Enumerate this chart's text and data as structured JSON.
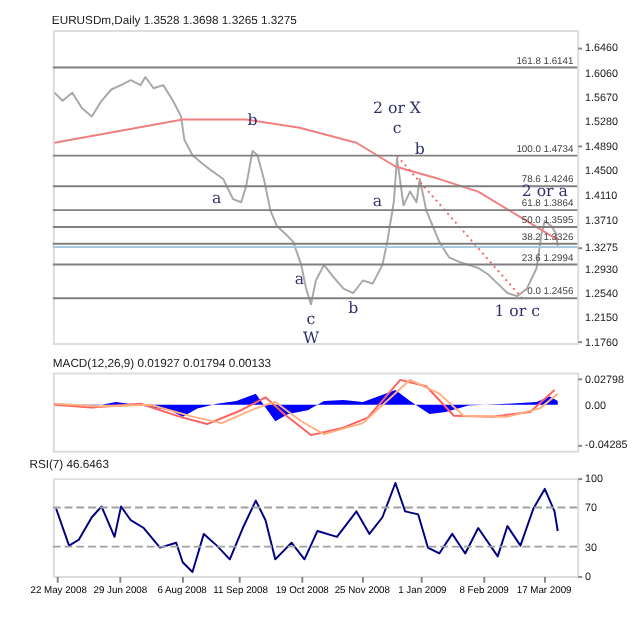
{
  "chart_data": [
    {
      "type": "line",
      "title": "EURUSDm,Daily  1.3528 1.3698 1.3265 1.3275",
      "xlim": [
        "2008-05-19",
        "2009-04-07"
      ],
      "ylim": [
        1.174,
        1.674
      ],
      "tick_labels": "y",
      "yticks": [
        {
          "value": 1.646,
          "label": "1.6460"
        },
        {
          "value": 1.606,
          "label": "1.6060"
        },
        {
          "value": 1.567,
          "label": "1.5670"
        },
        {
          "value": 1.528,
          "label": "1.5280"
        },
        {
          "value": 1.489,
          "label": "1.4890"
        },
        {
          "value": 1.45,
          "label": "1.4500"
        },
        {
          "value": 1.411,
          "label": "1.4110"
        },
        {
          "value": 1.371,
          "label": "1.3710"
        },
        {
          "value": 1.3275,
          "label": "1.3275"
        },
        {
          "value": 1.293,
          "label": "1.2930"
        },
        {
          "value": 1.254,
          "label": "1.2540"
        },
        {
          "value": 1.215,
          "label": "1.2150"
        },
        {
          "value": 1.176,
          "label": "1.1760"
        }
      ],
      "series": [
        {
          "color": "#a8a8a8",
          "x": [
            "2008-05-20",
            "2008-05-25",
            "2008-05-31",
            "2008-06-06",
            "2008-06-12",
            "2008-06-18",
            "2008-06-24",
            "2008-06-30",
            "2008-07-06",
            "2008-07-12",
            "2008-07-15",
            "2008-07-20",
            "2008-07-26",
            "2008-08-01",
            "2008-08-06",
            "2008-08-08",
            "2008-08-13",
            "2008-08-19",
            "2008-08-25",
            "2008-09-01",
            "2008-09-07",
            "2008-09-12",
            "2008-09-15",
            "2008-09-19",
            "2008-09-22",
            "2008-09-26",
            "2008-09-30",
            "2008-10-04",
            "2008-10-09",
            "2008-10-14",
            "2008-10-19",
            "2008-10-22",
            "2008-10-25",
            "2008-10-28",
            "2008-11-02",
            "2008-11-08",
            "2008-11-14",
            "2008-11-20",
            "2008-11-26",
            "2008-12-02",
            "2008-12-08",
            "2008-12-11",
            "2008-12-15",
            "2008-12-17",
            "2008-12-21",
            "2008-12-25",
            "2008-12-29",
            "2008-12-31",
            "2009-01-04",
            "2009-01-08",
            "2009-01-12",
            "2009-01-18",
            "2009-01-24",
            "2009-01-30",
            "2009-02-05",
            "2009-02-11",
            "2009-02-17",
            "2009-02-23",
            "2009-03-01",
            "2009-03-07",
            "2009-03-13",
            "2009-03-16",
            "2009-03-18",
            "2009-03-22",
            "2009-03-25",
            "2009-03-26"
          ],
          "values": [
            1.574,
            1.561,
            1.574,
            1.549,
            1.536,
            1.561,
            1.579,
            1.586,
            1.594,
            1.586,
            1.599,
            1.581,
            1.586,
            1.561,
            1.536,
            1.499,
            1.474,
            1.461,
            1.449,
            1.436,
            1.404,
            1.399,
            1.424,
            1.481,
            1.474,
            1.436,
            1.386,
            1.361,
            1.349,
            1.336,
            1.299,
            1.261,
            1.236,
            1.274,
            1.299,
            1.279,
            1.261,
            1.254,
            1.274,
            1.269,
            1.299,
            1.336,
            1.399,
            1.469,
            1.394,
            1.416,
            1.399,
            1.436,
            1.386,
            1.361,
            1.336,
            1.311,
            1.304,
            1.299,
            1.294,
            1.284,
            1.269,
            1.254,
            1.249,
            1.261,
            1.294,
            1.349,
            1.369,
            1.361,
            1.349,
            1.328
          ]
        },
        {
          "color": "#f08080",
          "x": [
            "2008-05-20",
            "2008-08-07",
            "2008-09-15",
            "2008-10-18",
            "2008-11-22",
            "2008-12-16",
            "2009-01-12",
            "2009-02-05",
            "2009-03-26"
          ],
          "values": [
            1.494,
            1.531,
            1.531,
            1.518,
            1.494,
            1.456,
            1.436,
            1.416,
            1.339
          ]
        },
        {
          "color": "#ff6060",
          "line_style": "dotted",
          "x": [
            "2008-12-17",
            "2009-03-04"
          ],
          "values": [
            1.473,
            1.246
          ]
        }
      ],
      "ref_lines": [
        {
          "axis": "y",
          "value": 1.6141,
          "label": "161.8 1.6141",
          "color": "#808080"
        },
        {
          "axis": "y",
          "value": 1.4734,
          "label": "100.0 1.4734",
          "color": "#808080"
        },
        {
          "axis": "y",
          "value": 1.4246,
          "label": "78.6 1.4246",
          "color": "#808080"
        },
        {
          "axis": "y",
          "value": 1.3864,
          "label": "61.8 1.3864",
          "color": "#808080"
        },
        {
          "axis": "y",
          "value": 1.3595,
          "label": "50.0 1.3595",
          "color": "#808080"
        },
        {
          "axis": "y",
          "value": 1.3326,
          "label": "38.2 1.3326",
          "color": "#808080"
        },
        {
          "axis": "y",
          "value": 1.2994,
          "label": "23.6 1.2994",
          "color": "#808080"
        },
        {
          "axis": "y",
          "value": 1.2456,
          "label": "0.0 1.2456",
          "color": "#808080"
        },
        {
          "axis": "y",
          "value": 1.3275,
          "color": "#a8c8e0"
        }
      ],
      "annotations": [
        {
          "text": "a",
          "x": "2008-09-07",
          "y": 1.404
        },
        {
          "text": "b",
          "x": "2008-09-19",
          "y": 1.481
        },
        {
          "text": "c",
          "x": "2008-12-17",
          "y": 1.469
        },
        {
          "text": "2 or X",
          "x": "2008-12-17",
          "y": 1.469
        },
        {
          "text": "b",
          "x": "2008-12-31",
          "y": 1.436
        },
        {
          "text": "a",
          "x": "2008-12-15",
          "y": 1.399
        },
        {
          "text": "2 or a",
          "x": "2009-03-18",
          "y": 1.369
        },
        {
          "text": "1 or c",
          "x": "2009-03-01",
          "y": 1.249
        },
        {
          "text": "a",
          "x": "2008-10-28",
          "y": 1.274
        },
        {
          "text": "c",
          "x": "2008-10-25",
          "y": 1.236
        },
        {
          "text": "W",
          "x": "2008-10-25",
          "y": 1.236
        },
        {
          "text": "b",
          "x": "2008-11-20",
          "y": 1.254
        }
      ]
    },
    {
      "type": "line",
      "title": "MACD(12,26,9) 0.01927 0.01794 0.00133",
      "xlim": [
        "2008-05-19",
        "2009-04-07"
      ],
      "ylim": [
        -0.05,
        0.035
      ],
      "tick_labels": "y",
      "yticks": [
        0.02798,
        {
          "value": 0,
          "label": "0.00"
        },
        -0.04285
      ],
      "series": [
        {
          "type": "area",
          "color": "#0000ff",
          "x": [
            "2008-05-20",
            "2008-06-12",
            "2008-06-27",
            "2008-07-12",
            "2008-07-30",
            "2008-08-07",
            "2008-08-16",
            "2008-08-28",
            "2008-09-09",
            "2008-09-21",
            "2008-10-03",
            "2008-10-11",
            "2008-10-23",
            "2008-11-02",
            "2008-11-14",
            "2008-11-26",
            "2008-12-04",
            "2008-12-16",
            "2008-12-25",
            "2009-01-06",
            "2009-01-16",
            "2009-01-30",
            "2009-02-23",
            "2009-03-13",
            "2009-03-21",
            "2009-03-26"
          ],
          "values": [
            0.001,
            -0.002,
            0.003,
            -0.001,
            -0.006,
            -0.013,
            -0.004,
            0.001,
            0.004,
            0.012,
            -0.018,
            -0.01,
            -0.006,
            0.004,
            0.005,
            0.003,
            0.008,
            0.016,
            0.004,
            -0.01,
            -0.008,
            -0.001,
            0.001,
            0.003,
            0.009,
            0.004
          ]
        },
        {
          "color": "#ff6060",
          "x": [
            "2008-05-20",
            "2008-06-12",
            "2008-07-12",
            "2008-08-07",
            "2008-08-22",
            "2008-09-12",
            "2008-09-27",
            "2008-10-09",
            "2008-10-25",
            "2008-11-14",
            "2008-11-29",
            "2008-12-19",
            "2009-01-04",
            "2009-01-21",
            "2009-02-14",
            "2009-03-09",
            "2009-03-24"
          ],
          "values": [
            0,
            -0.003,
            0.001,
            -0.014,
            -0.021,
            -0.006,
            0.008,
            -0.011,
            -0.033,
            -0.025,
            -0.014,
            0.027,
            0.02,
            -0.012,
            -0.013,
            -0.008,
            0.016
          ]
        },
        {
          "color": "#ffb080",
          "x": [
            "2008-05-20",
            "2008-06-18",
            "2008-07-18",
            "2008-08-13",
            "2008-08-31",
            "2008-09-21",
            "2008-10-03",
            "2008-10-19",
            "2008-11-02",
            "2008-11-26",
            "2008-12-25",
            "2009-01-12",
            "2009-01-27",
            "2009-02-23",
            "2009-03-15",
            "2009-03-26"
          ],
          "values": [
            0.001,
            -0.002,
            0,
            -0.013,
            -0.02,
            -0.004,
            0.003,
            -0.018,
            -0.032,
            -0.02,
            0.027,
            0.012,
            -0.012,
            -0.013,
            -0.004,
            0.012
          ]
        }
      ]
    },
    {
      "type": "line",
      "title": "RSI(7) 46.6463",
      "xlim": [
        "2008-05-19",
        "2009-04-07"
      ],
      "ylim": [
        0,
        100
      ],
      "yticks": [
        0,
        30,
        70,
        100
      ],
      "xticks": [
        {
          "value": "2008-05-22",
          "label": "22 May 2008"
        },
        {
          "value": "2008-06-29",
          "label": "29 Jun 2008"
        },
        {
          "value": "2008-08-06",
          "label": "6 Aug 2008"
        },
        {
          "value": "2008-09-11",
          "label": "11 Sep 2008"
        },
        {
          "value": "2008-10-19",
          "label": "19 Oct 2008"
        },
        {
          "value": "2008-11-25",
          "label": "25 Nov 2008"
        },
        {
          "value": "2009-01-01",
          "label": "1 Jan 2009"
        },
        {
          "value": "2009-02-08",
          "label": "8 Feb 2009"
        },
        {
          "value": "2009-03-17",
          "label": "17 Mar 2009"
        }
      ],
      "series": [
        {
          "color": "#000080",
          "x": [
            "2008-05-21",
            "2008-05-29",
            "2008-06-04",
            "2008-06-12",
            "2008-06-18",
            "2008-06-26",
            "2008-06-30",
            "2008-07-06",
            "2008-07-14",
            "2008-07-24",
            "2008-08-03",
            "2008-08-07",
            "2008-08-13",
            "2008-08-20",
            "2008-08-28",
            "2008-09-05",
            "2008-09-13",
            "2008-09-21",
            "2008-09-27",
            "2008-10-03",
            "2008-10-13",
            "2008-10-21",
            "2008-10-29",
            "2008-11-10",
            "2008-11-22",
            "2008-11-30",
            "2008-12-08",
            "2008-12-16",
            "2008-12-22",
            "2008-12-30",
            "2009-01-05",
            "2009-01-12",
            "2009-01-20",
            "2009-01-28",
            "2009-02-05",
            "2009-02-17",
            "2009-02-23",
            "2009-03-03",
            "2009-03-11",
            "2009-03-18",
            "2009-03-24",
            "2009-03-26"
          ],
          "values": [
            69,
            31,
            37,
            60,
            71,
            40,
            71,
            57,
            49,
            29,
            34,
            14,
            4,
            43,
            31,
            17,
            49,
            77,
            57,
            17,
            34,
            17,
            46,
            40,
            66,
            43,
            60,
            95,
            66,
            63,
            29,
            23,
            43,
            23,
            49,
            20,
            51,
            31,
            69,
            89,
            66,
            46
          ]
        }
      ],
      "ref_lines": [
        {
          "axis": "y",
          "value": 70,
          "color": "#a0a0a0",
          "line_style": "dashed"
        },
        {
          "axis": "y",
          "value": 30,
          "color": "#a0a0a0",
          "line_style": "dashed"
        }
      ]
    }
  ]
}
